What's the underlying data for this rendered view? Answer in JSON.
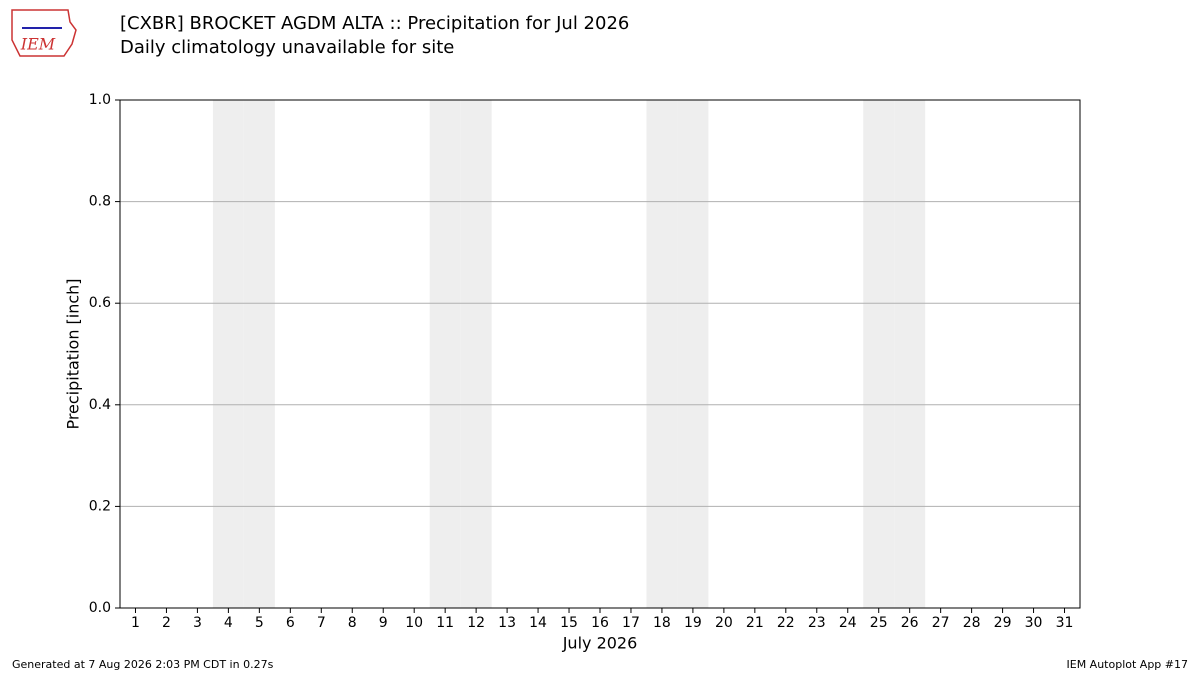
{
  "logo_text": "IEM",
  "chart_data": {
    "type": "bar",
    "title": "[CXBR] BROCKET AGDM  ALTA :: Precipitation for Jul 2026",
    "subtitle": "Daily climatology unavailable for site",
    "ylabel": "Precipitation [inch]",
    "xlabel": "July 2026",
    "xlim": [
      0.5,
      31.5
    ],
    "xticks": [
      1,
      2,
      3,
      4,
      5,
      6,
      7,
      8,
      9,
      10,
      11,
      12,
      13,
      14,
      15,
      16,
      17,
      18,
      19,
      20,
      21,
      22,
      23,
      24,
      25,
      26,
      27,
      28,
      29,
      30,
      31
    ],
    "ylim": [
      0,
      1
    ],
    "yticks": [
      {
        "value": 0,
        "label": "0.0"
      },
      {
        "value": 0.2,
        "label": "0.2"
      },
      {
        "value": 0.4,
        "label": "0.4"
      },
      {
        "value": 0.6,
        "label": "0.6"
      },
      {
        "value": 0.8,
        "label": "0.8"
      },
      {
        "value": 1,
        "label": "1.0"
      }
    ],
    "grid": true,
    "shaded_days": [
      4,
      5,
      11,
      12,
      18,
      19,
      25,
      26
    ],
    "shade_color": "#eeeeee"
  },
  "footer": {
    "left": "Generated at 7 Aug 2026 2:03 PM CDT in 0.27s",
    "right": "IEM Autoplot App #17"
  }
}
